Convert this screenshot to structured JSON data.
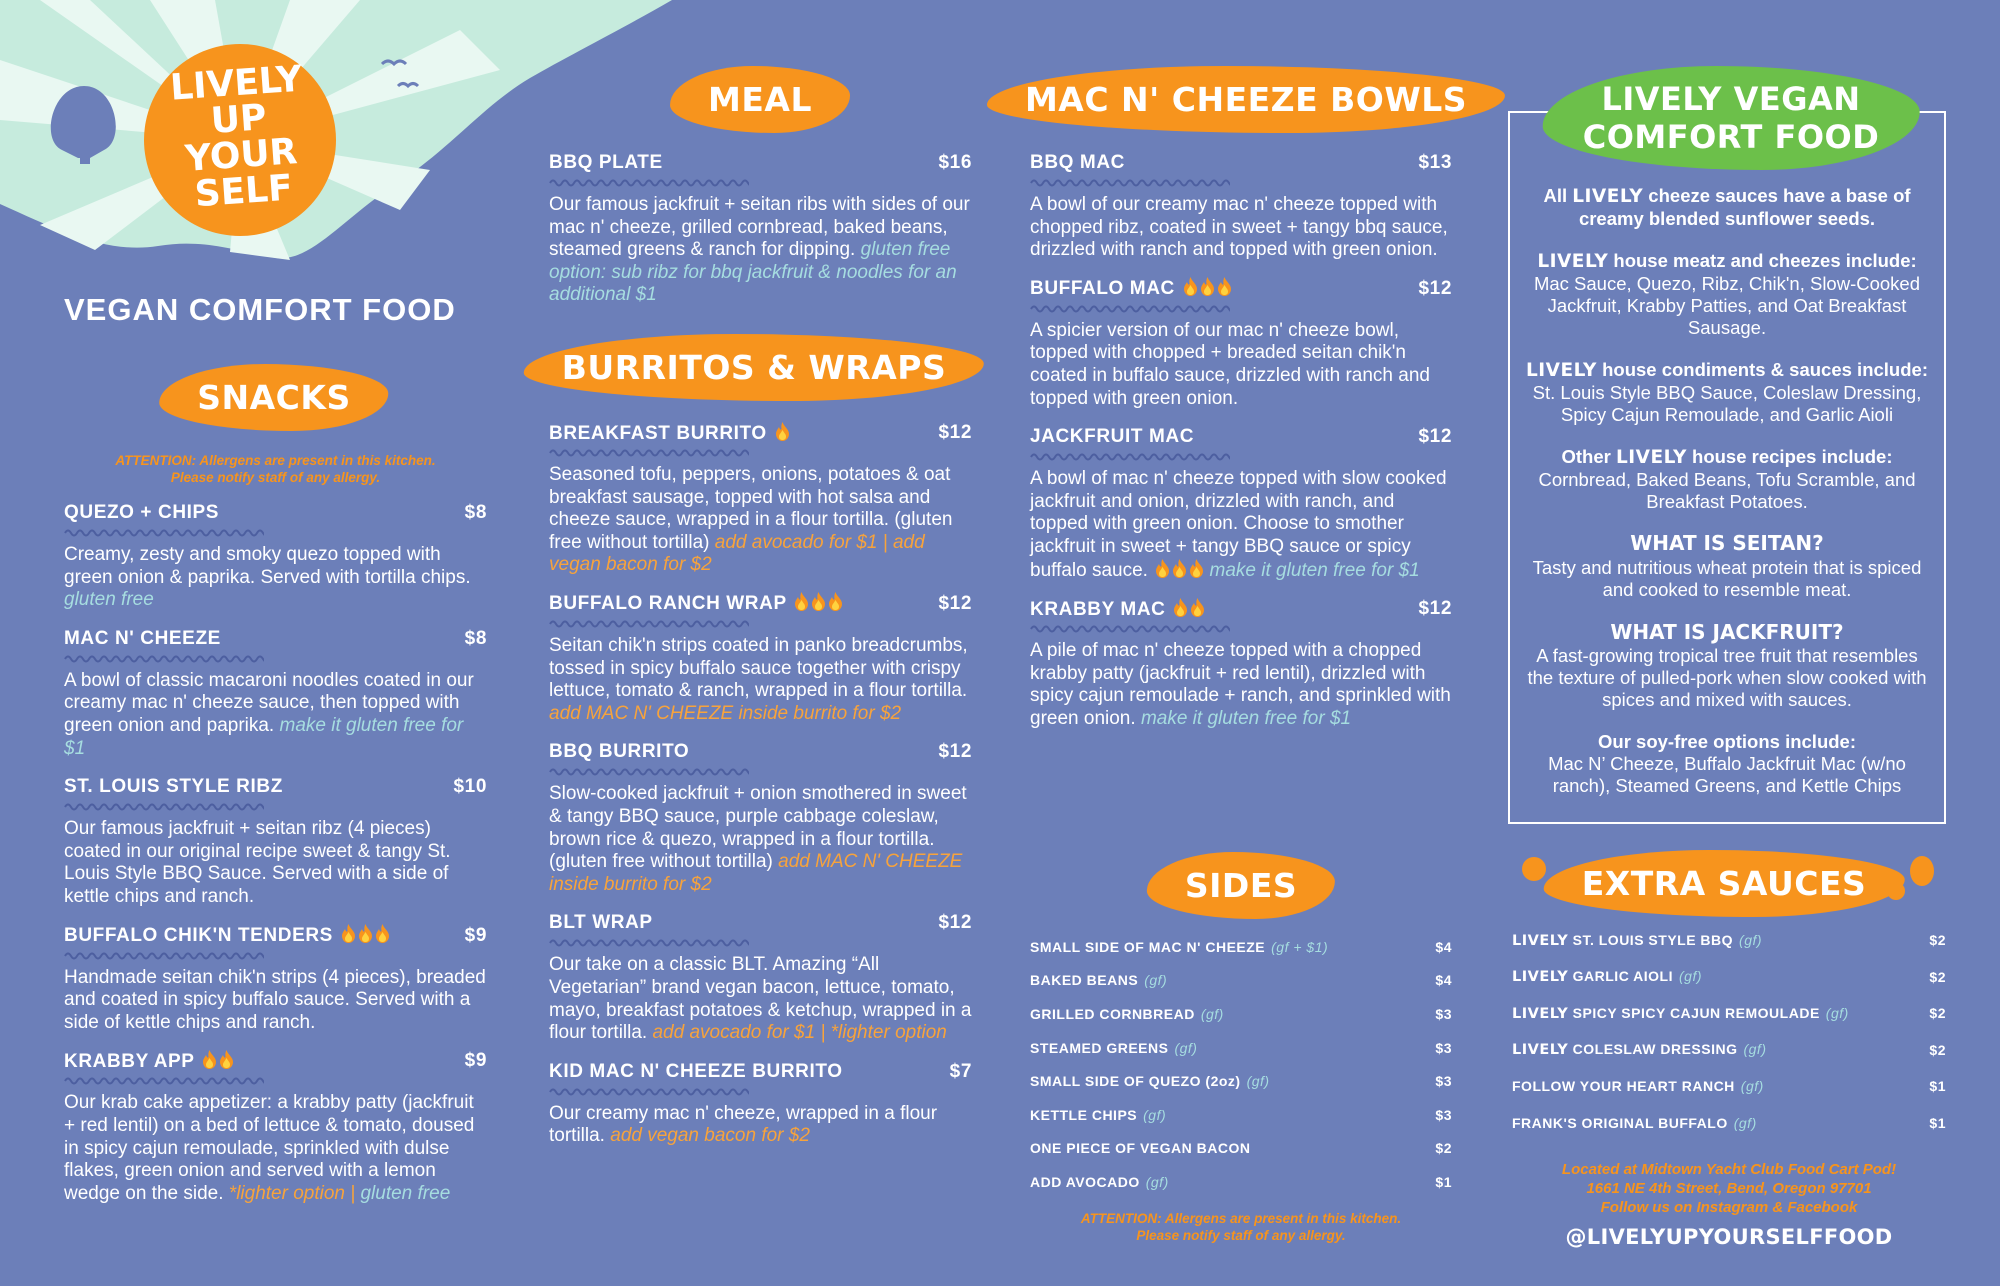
{
  "logo": {
    "lines": [
      "LIVELY",
      "UP",
      "YOUR",
      "SELF"
    ]
  },
  "tagline": "VEGAN COMFORT FOOD",
  "snacks": {
    "title": "SNACKS",
    "attention": [
      "ATTENTION: Allergens are present in this kitchen.",
      "Please notify staff of any allergy."
    ],
    "items": [
      {
        "name": "QUEZO + CHIPS",
        "price": "$8",
        "desc": "Creamy, zesty and smoky quezo topped with green onion & paprika. Served with tortilla chips.",
        "notes": [
          {
            "text": "gluten free",
            "style": "gf"
          }
        ]
      },
      {
        "name": "MAC N' CHEEZE",
        "price": "$8",
        "desc": "A bowl of classic macaroni noodles coated in our creamy mac n' cheeze sauce, then topped with green onion and paprika.",
        "notes": [
          {
            "text": "make it gluten free for $1",
            "style": "gf"
          }
        ]
      },
      {
        "name": "ST. LOUIS STYLE RIBZ",
        "price": "$10",
        "desc": "Our famous jackfruit + seitan ribz (4 pieces) coated in our original recipe sweet & tangy St. Louis Style BBQ Sauce. Served with a side of kettle chips and ranch."
      },
      {
        "name": "BUFFALO CHIK'N TENDERS",
        "spice": 3,
        "price": "$9",
        "desc": "Handmade seitan chik'n strips (4 pieces), breaded and coated in spicy buffalo sauce. Served with a side of kettle chips and ranch."
      },
      {
        "name": "KRABBY APP",
        "spice": 2,
        "price": "$9",
        "desc": "Our krab cake appetizer: a krabby patty (jackfruit + red lentil) on a bed of lettuce & tomato, doused in spicy cajun remoulade, sprinkled with dulse flakes, green onion and served with a lemon wedge on the side.",
        "notes": [
          {
            "text": "*lighter option | ",
            "style": "add"
          },
          {
            "text": "gluten free",
            "style": "gf"
          }
        ]
      }
    ]
  },
  "meal": {
    "title": "MEAL",
    "items": [
      {
        "name": "BBQ PLATE",
        "price": "$16",
        "desc": "Our famous jackfruit + seitan ribs with sides of our mac n' cheeze, grilled cornbread, baked beans, steamed greens & ranch for dipping.",
        "notes": [
          {
            "text": "gluten free option: sub ribz for bbq jackfruit & noodles for an additional $1",
            "style": "gf"
          }
        ]
      }
    ]
  },
  "burritos": {
    "title": "BURRITOS & WRAPS",
    "items": [
      {
        "name": "BREAKFAST BURRITO",
        "spice": 1,
        "price": "$12",
        "desc": "Seasoned tofu, peppers, onions, potatoes & oat breakfast sausage, topped with hot salsa and cheeze sauce, wrapped in a flour tortilla. (gluten free without tortilla)",
        "notes": [
          {
            "text": "add avocado for $1 | add vegan bacon for $2",
            "style": "add"
          }
        ]
      },
      {
        "name": "BUFFALO RANCH WRAP",
        "spice": 3,
        "price": "$12",
        "desc": "Seitan chik'n strips coated in panko breadcrumbs, tossed in spicy buffalo sauce together with crispy lettuce, tomato & ranch, wrapped in a flour tortilla.",
        "notes": [
          {
            "text": "add MAC N' CHEEZE inside burrito for $2",
            "style": "add"
          }
        ]
      },
      {
        "name": "BBQ BURRITO",
        "price": "$12",
        "desc": "Slow-cooked jackfruit + onion smothered in sweet & tangy BBQ sauce, purple cabbage coleslaw, brown rice & quezo, wrapped in a flour tortilla. (gluten free without tortilla)",
        "notes": [
          {
            "text": "add MAC N' CHEEZE inside burrito for $2",
            "style": "add"
          }
        ]
      },
      {
        "name": "BLT WRAP",
        "price": "$12",
        "desc": "Our take on a classic BLT. Amazing “All Vegetarian” brand vegan bacon, lettuce, tomato, mayo, breakfast potatoes & ketchup, wrapped in a flour tortilla.",
        "notes": [
          {
            "text": "add avocado for $1 | *lighter option",
            "style": "add"
          }
        ]
      },
      {
        "name": "KID MAC N' CHEEZE BURRITO",
        "price": "$7",
        "desc": "Our creamy mac n' cheeze, wrapped in a flour tortilla.",
        "notes": [
          {
            "text": "add vegan bacon for $2",
            "style": "add"
          }
        ]
      }
    ]
  },
  "mac": {
    "title": "MAC N' CHEEZE BOWLS",
    "items": [
      {
        "name": "BBQ MAC",
        "price": "$13",
        "desc": "A bowl of our creamy mac n' cheeze topped with chopped ribz, coated in sweet + tangy bbq sauce, drizzled with ranch and topped with green onion."
      },
      {
        "name": "BUFFALO MAC",
        "spice": 3,
        "price": "$12",
        "desc": "A spicier version of our mac n' cheeze bowl, topped with chopped + breaded seitan chik'n coated in buffalo sauce, drizzled with ranch and topped with green onion."
      },
      {
        "name": "JACKFRUIT MAC",
        "price": "$12",
        "desc": "A bowl of mac n' cheeze topped with slow cooked jackfruit and onion, drizzled with ranch, and topped with green onion. Choose to smother jackfruit in sweet + tangy BBQ sauce or spicy buffalo sauce.",
        "desc_spice": 3,
        "notes": [
          {
            "text": "make it gluten free for $1",
            "style": "gf"
          }
        ]
      },
      {
        "name": "KRABBY MAC",
        "spice": 2,
        "price": "$12",
        "desc": "A pile of mac n' cheeze topped with a chopped krabby patty (jackfruit + red lentil), drizzled with spicy cajun remoulade + ranch, and sprinkled with green onion.",
        "notes": [
          {
            "text": "make it gluten free for $1",
            "style": "gf"
          }
        ]
      }
    ]
  },
  "sides": {
    "title": "SIDES",
    "items": [
      {
        "name": "SMALL SIDE OF MAC N' CHEEZE",
        "tag": "(gf + $1)",
        "price": "$4"
      },
      {
        "name": "BAKED BEANS",
        "tag": "(gf)",
        "price": "$4"
      },
      {
        "name": "GRILLED CORNBREAD",
        "tag": "(gf)",
        "price": "$3"
      },
      {
        "name": "STEAMED GREENS",
        "tag": "(gf)",
        "price": "$3"
      },
      {
        "name": "SMALL SIDE OF QUEZO (2oz)",
        "tag": "(gf)",
        "price": "$3"
      },
      {
        "name": "KETTLE CHIPS",
        "tag": "(gf)",
        "price": "$3"
      },
      {
        "name": "ONE PIECE OF VEGAN BACON",
        "price": "$2"
      },
      {
        "name": "ADD AVOCADO",
        "tag": "(gf)",
        "price": "$1"
      }
    ],
    "attention": [
      "ATTENTION: Allergens are present in this kitchen.",
      "Please notify staff of any allergy."
    ]
  },
  "info": {
    "title": [
      "LIVELY VEGAN",
      "COMFORT FOOD"
    ],
    "blocks": [
      [
        {
          "text": "All ",
          "style": "bold"
        },
        {
          "text": "LIVELY",
          "style": "brand"
        },
        {
          "text": " cheeze sauces have a base of creamy blended sunflower seeds.",
          "style": "bold"
        }
      ],
      [
        {
          "text": "LIVELY",
          "style": "brand"
        },
        {
          "text": " house meatz and cheezes include:",
          "style": "bold"
        },
        {
          "text": " Mac Sauce, Quezo, Ribz, Chik'n, Slow-Cooked Jackfruit, Krabby Patties, and Oat Breakfast Sausage.",
          "style": "plain"
        }
      ],
      [
        {
          "text": "LIVELY",
          "style": "brand"
        },
        {
          "text": " house condiments & sauces include:",
          "style": "bold"
        },
        {
          "text": "St. Louis Style BBQ Sauce, Coleslaw Dressing, Spicy Cajun Remoulade, and Garlic Aioli",
          "style": "block"
        }
      ],
      [
        {
          "text": "Other ",
          "style": "bold"
        },
        {
          "text": "LIVELY",
          "style": "brand"
        },
        {
          "text": " house recipes include:",
          "style": "bold"
        },
        {
          "text": "Cornbread, Baked Beans, Tofu Scramble, and Breakfast Potatoes.",
          "style": "block"
        }
      ],
      [
        {
          "text": "WHAT IS SEITAN?",
          "style": "heading"
        },
        {
          "text": "Tasty and nutritious wheat protein that is spiced and cooked to resemble meat.",
          "style": "plain"
        }
      ],
      [
        {
          "text": "WHAT IS JACKFRUIT?",
          "style": "heading"
        },
        {
          "text": "A fast-growing tropical tree fruit that resembles the texture of pulled-pork when slow cooked with spices and mixed with sauces.",
          "style": "plain"
        }
      ],
      [
        {
          "text": "Our soy-free options include:",
          "style": "bold"
        },
        {
          "text": "Mac N’ Cheeze, Buffalo Jackfruit Mac (w/no ranch), Steamed Greens, and Kettle Chips",
          "style": "block"
        }
      ]
    ]
  },
  "sauces": {
    "title": "EXTRA SAUCES",
    "items": [
      {
        "prefix": "LIVELY",
        "name": " ST. LOUIS STYLE BBQ",
        "tag": "(gf)",
        "price": "$2"
      },
      {
        "prefix": "LIVELY",
        "name": " GARLIC AIOLI",
        "tag": "(gf)",
        "price": "$2"
      },
      {
        "prefix": "LIVELY",
        "name": " SPICY SPICY CAJUN REMOULADE",
        "tag": "(gf)",
        "price": "$2"
      },
      {
        "prefix": "LIVELY",
        "name": " COLESLAW DRESSING",
        "tag": "(gf)",
        "price": "$2"
      },
      {
        "name": "FOLLOW YOUR HEART RANCH",
        "tag": "(gf)",
        "price": "$1"
      },
      {
        "name": "FRANK'S ORIGINAL BUFFALO",
        "tag": "(gf)",
        "price": "$1"
      }
    ]
  },
  "footer": {
    "lines": [
      "Located at Midtown Yacht Club Food Cart Pod!",
      "1661 NE 4th Street, Bend, Oregon 97701",
      "Follow us on Instagram & Facebook"
    ],
    "handle": "@LIVELYUPYOURSELFFOOD"
  }
}
